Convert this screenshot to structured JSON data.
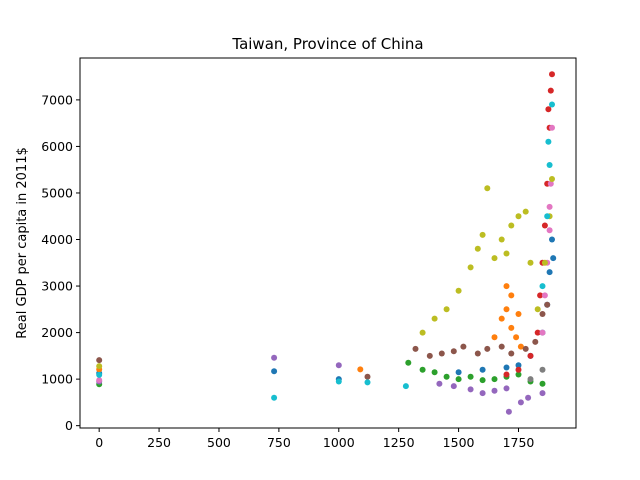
{
  "chart_data": {
    "type": "scatter",
    "title": "Taiwan, Province of China",
    "xlabel": "",
    "ylabel": "Real GDP per capita in 2011$",
    "xlim": [
      -80,
      1990
    ],
    "ylim": [
      -50,
      7900
    ],
    "xticks": [
      0,
      250,
      500,
      750,
      1000,
      1250,
      1500,
      1750
    ],
    "yticks": [
      0,
      1000,
      2000,
      3000,
      4000,
      5000,
      6000,
      7000
    ],
    "grid": false,
    "legend": "none",
    "series": [
      {
        "color": "#1f77b4",
        "points": [
          [
            0,
            1130
          ],
          [
            730,
            1170
          ],
          [
            1000,
            1000
          ],
          [
            1500,
            1150
          ],
          [
            1600,
            1200
          ],
          [
            1700,
            1250
          ],
          [
            1750,
            1300
          ],
          [
            1800,
            1500
          ],
          [
            1850,
            2000
          ],
          [
            1870,
            2600
          ],
          [
            1880,
            3300
          ],
          [
            1890,
            4000
          ],
          [
            1895,
            3600
          ]
        ]
      },
      {
        "color": "#ff7f0e",
        "points": [
          [
            0,
            1210
          ],
          [
            1090,
            1210
          ],
          [
            1650,
            1900
          ],
          [
            1680,
            2300
          ],
          [
            1700,
            2500
          ],
          [
            1720,
            2100
          ],
          [
            1740,
            1900
          ],
          [
            1760,
            1700
          ],
          [
            1700,
            3000
          ],
          [
            1720,
            2800
          ],
          [
            1750,
            2400
          ]
        ]
      },
      {
        "color": "#2ca02c",
        "points": [
          [
            0,
            890
          ],
          [
            1290,
            1350
          ],
          [
            1350,
            1200
          ],
          [
            1400,
            1150
          ],
          [
            1450,
            1050
          ],
          [
            1500,
            1000
          ],
          [
            1550,
            1050
          ],
          [
            1600,
            980
          ],
          [
            1650,
            1000
          ],
          [
            1700,
            1050
          ],
          [
            1750,
            1100
          ],
          [
            1800,
            950
          ],
          [
            1850,
            900
          ]
        ]
      },
      {
        "color": "#d62728",
        "points": [
          [
            1700,
            1100
          ],
          [
            1750,
            1200
          ],
          [
            1800,
            1500
          ],
          [
            1830,
            2000
          ],
          [
            1840,
            2800
          ],
          [
            1850,
            3500
          ],
          [
            1860,
            4300
          ],
          [
            1870,
            5200
          ],
          [
            1880,
            6400
          ],
          [
            1885,
            7200
          ],
          [
            1890,
            7550
          ],
          [
            1875,
            6800
          ]
        ]
      },
      {
        "color": "#9467bd",
        "points": [
          [
            0,
            950
          ],
          [
            730,
            1460
          ],
          [
            1000,
            1300
          ],
          [
            1420,
            900
          ],
          [
            1480,
            850
          ],
          [
            1550,
            780
          ],
          [
            1600,
            700
          ],
          [
            1650,
            750
          ],
          [
            1700,
            800
          ],
          [
            1710,
            300
          ],
          [
            1760,
            500
          ],
          [
            1790,
            600
          ],
          [
            1850,
            700
          ]
        ]
      },
      {
        "color": "#8c564b",
        "points": [
          [
            0,
            1410
          ],
          [
            1120,
            1050
          ],
          [
            1320,
            1650
          ],
          [
            1380,
            1500
          ],
          [
            1430,
            1550
          ],
          [
            1480,
            1600
          ],
          [
            1520,
            1700
          ],
          [
            1580,
            1550
          ],
          [
            1620,
            1650
          ],
          [
            1680,
            1700
          ],
          [
            1720,
            1550
          ],
          [
            1780,
            1650
          ],
          [
            1820,
            1800
          ],
          [
            1850,
            2400
          ],
          [
            1870,
            2600
          ]
        ]
      },
      {
        "color": "#e377c2",
        "points": [
          [
            0,
            980
          ],
          [
            1850,
            2000
          ],
          [
            1860,
            2800
          ],
          [
            1870,
            3500
          ],
          [
            1880,
            4200
          ],
          [
            1885,
            5200
          ],
          [
            1890,
            6400
          ],
          [
            1880,
            4700
          ]
        ]
      },
      {
        "color": "#7f7f7f",
        "points": [
          [
            1800,
            1000
          ],
          [
            1850,
            1200
          ]
        ]
      },
      {
        "color": "#bcbd22",
        "points": [
          [
            0,
            1280
          ],
          [
            1350,
            2000
          ],
          [
            1400,
            2300
          ],
          [
            1450,
            2500
          ],
          [
            1500,
            2900
          ],
          [
            1550,
            3400
          ],
          [
            1580,
            3800
          ],
          [
            1600,
            4100
          ],
          [
            1620,
            5100
          ],
          [
            1650,
            3600
          ],
          [
            1680,
            4000
          ],
          [
            1700,
            3700
          ],
          [
            1720,
            4300
          ],
          [
            1750,
            4500
          ],
          [
            1780,
            4600
          ],
          [
            1800,
            3500
          ],
          [
            1830,
            2500
          ],
          [
            1860,
            3500
          ],
          [
            1880,
            4500
          ],
          [
            1890,
            5300
          ]
        ]
      },
      {
        "color": "#17becf",
        "points": [
          [
            0,
            1090
          ],
          [
            730,
            600
          ],
          [
            1000,
            950
          ],
          [
            1120,
            930
          ],
          [
            1280,
            850
          ],
          [
            1850,
            3000
          ],
          [
            1870,
            4500
          ],
          [
            1880,
            5600
          ],
          [
            1890,
            6900
          ],
          [
            1875,
            6100
          ]
        ]
      }
    ]
  }
}
